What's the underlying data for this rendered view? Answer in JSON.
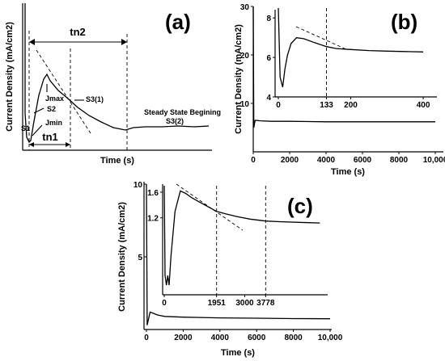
{
  "chart_data": [
    {
      "type": "line",
      "panel": "(a)",
      "xlabel": "Time (s)",
      "ylabel": "Current Density (mA/cm2)",
      "annotations": {
        "tn2": "tn2",
        "tn1": "tn1",
        "jmax": "Jmax",
        "jmin": "Jmin",
        "s1": "S1",
        "s2": "S2",
        "s31": "S3(1)",
        "s32": "S3(2)",
        "steady": "Steady State Begining"
      }
    },
    {
      "type": "line",
      "panel": "(b)",
      "xlabel": "Time (s)",
      "ylabel": "Current Density (mA/cm2)",
      "xlim": [
        0,
        10000
      ],
      "ylim": [
        0,
        30
      ],
      "xticks": [
        "0",
        "2000",
        "4000",
        "6000",
        "8000",
        "10,000"
      ],
      "yticks": [
        "10",
        "20",
        "30"
      ],
      "series": [
        {
          "x": [
            0,
            30,
            100,
            400,
            1000,
            2000,
            4000,
            6000,
            8000,
            10000
          ],
          "y": [
            30,
            5,
            6.5,
            6.4,
            6.3,
            6.3,
            6.2,
            6.2,
            6.2,
            6.2
          ]
        }
      ],
      "inset": {
        "xlim": [
          0,
          420
        ],
        "ylim": [
          4,
          8.5
        ],
        "xticks": [
          "0",
          "133",
          "200",
          "400"
        ],
        "yticks": [
          "4",
          "6",
          "8"
        ],
        "marker_x": 133,
        "series": [
          {
            "x": [
              0,
              5,
              12,
              18,
              25,
              35,
              50,
              70,
              100,
              133,
              160,
              200,
              250,
              300,
              350,
              400
            ],
            "y": [
              8.5,
              5.0,
              4.5,
              5.4,
              6.1,
              6.7,
              7.0,
              6.95,
              6.75,
              6.55,
              6.45,
              6.4,
              6.35,
              6.32,
              6.3,
              6.28
            ]
          }
        ]
      }
    },
    {
      "type": "line",
      "panel": "(c)",
      "xlabel": "Time (s)",
      "ylabel": "Current Density (mA/cm2)",
      "xlim": [
        0,
        10000
      ],
      "ylim": [
        0,
        10
      ],
      "xticks": [
        "0",
        "2000",
        "4000",
        "6000",
        "8000",
        "10,000"
      ],
      "yticks": [
        "5",
        "10"
      ],
      "series": [
        {
          "x": [
            0,
            40,
            200,
            600,
            1000,
            2000,
            4000,
            6000,
            8000,
            10000
          ],
          "y": [
            10,
            0.3,
            1.2,
            1.0,
            0.9,
            0.85,
            0.8,
            0.78,
            0.75,
            0.74
          ]
        }
      ],
      "inset": {
        "xlim": [
          0,
          6000
        ],
        "ylim": [
          0,
          1.7
        ],
        "xticks": [
          "0",
          "1951",
          "3000",
          "3778"
        ],
        "yticks": [
          "1.2",
          "1.6"
        ],
        "marker_x": [
          1951,
          3778
        ],
        "series": [
          {
            "x": [
              0,
              30,
              80,
              130,
              180,
              250,
              400,
              600,
              800,
              1000,
              1300,
              1600,
              1951,
              2300,
              2700,
              3200,
              3778,
              4300,
              5000,
              5800
            ],
            "y": [
              1.7,
              0.3,
              0.15,
              0.3,
              0.15,
              0.6,
              1.3,
              1.62,
              1.58,
              1.52,
              1.45,
              1.38,
              1.3,
              1.26,
              1.22,
              1.18,
              1.15,
              1.14,
              1.13,
              1.12
            ]
          }
        ]
      }
    }
  ]
}
